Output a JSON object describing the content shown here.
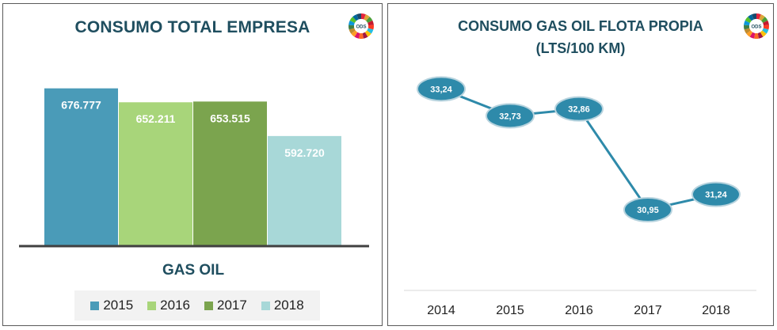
{
  "chart_data": [
    {
      "type": "bar",
      "title": "CONSUMO TOTAL EMPRESA",
      "categories": [
        "GAS OIL"
      ],
      "series": [
        {
          "name": "2015",
          "values": [
            676777
          ],
          "label": "676.777",
          "color": "#4a9bb8"
        },
        {
          "name": "2016",
          "values": [
            652211
          ],
          "label": "652.211",
          "color": "#a8d57a"
        },
        {
          "name": "2017",
          "values": [
            653515
          ],
          "label": "653.515",
          "color": "#7ba44e"
        },
        {
          "name": "2018",
          "values": [
            592720
          ],
          "label": "592.720",
          "color": "#a8d8d8"
        }
      ],
      "ylim": [
        400000,
        700000
      ],
      "grid": false,
      "legend": "bottom"
    },
    {
      "type": "line",
      "title": "CONSUMO GAS OIL FLOTA PROPIA",
      "subtitle": "(LTS/100 KM)",
      "x": [
        "2014",
        "2015",
        "2016",
        "2017",
        "2018"
      ],
      "series": [
        {
          "values": [
            33.24,
            32.73,
            32.86,
            30.95,
            31.24
          ],
          "labels": [
            "33,24",
            "32,73",
            "32,86",
            "30,95",
            "31,24"
          ],
          "color": "#2e8aaa"
        }
      ],
      "ylim": [
        30.5,
        33.5
      ],
      "grid": false
    }
  ],
  "logo": {
    "text": "ODS",
    "icon": "ods-wheel-icon"
  }
}
